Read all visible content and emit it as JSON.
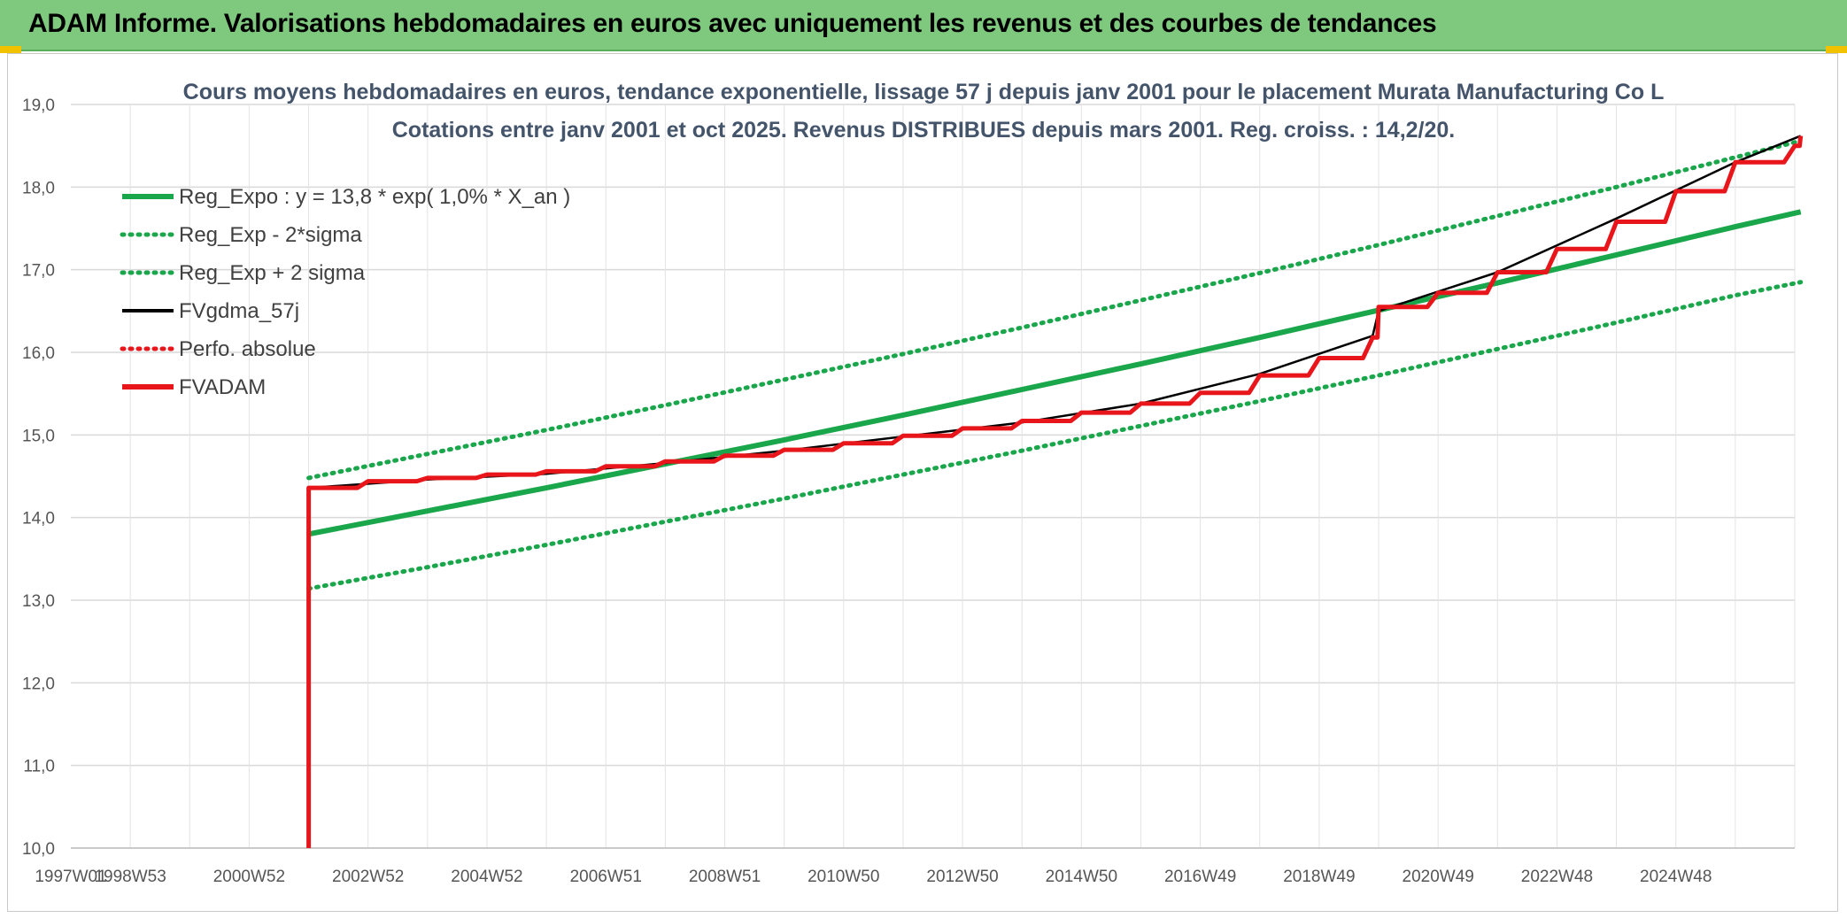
{
  "banner": {
    "title": "ADAM Informe. Valorisations hebdomadaires en euros avec uniquement les revenus et des courbes de tendances"
  },
  "colors": {
    "banner_bg": "#7fc97f",
    "reg_green": "#1aa64b",
    "fvadam_red": "#e8151b",
    "fvgdma_black": "#000000",
    "grid": "#d9d9d9",
    "title_text": "#44546a"
  },
  "chart_data": {
    "type": "line",
    "title": "Cours moyens hebdomadaires en euros, tendance exponentielle, lissage 57 j depuis janv 2001 pour le placement Murata Manufacturing Co L",
    "subtitle": "Cotations entre janv 2001 et oct 2025. Revenus DISTRIBUES depuis mars 2001. Reg. croiss. : 14,2/20.",
    "xlabel": "",
    "ylabel": "",
    "ylim": [
      10,
      19
    ],
    "xlim": [
      1997.0,
      2026.0
    ],
    "grid": true,
    "legend_position": "top-left",
    "y_ticks": [
      "10,0",
      "11,0",
      "12,0",
      "13,0",
      "14,0",
      "15,0",
      "16,0",
      "17,0",
      "18,0",
      "19,0"
    ],
    "x_ticks": [
      "1997W01",
      "1998W53",
      "2000W52",
      "2002W52",
      "2004W52",
      "2006W51",
      "2008W51",
      "2010W50",
      "2012W50",
      "2014W50",
      "2016W49",
      "2018W49",
      "2020W49",
      "2022W48",
      "2024W48"
    ],
    "series": [
      {
        "name": "Reg_Expo : y = 13,8 * exp( 1,0% *  X_an )",
        "style": "solid",
        "color": "#1aa64b",
        "x": [
          2001.0,
          2003.0,
          2005.0,
          2007.0,
          2009.0,
          2011.0,
          2013.0,
          2015.0,
          2017.0,
          2019.0,
          2021.0,
          2023.0,
          2025.0,
          2026.1
        ],
        "y": [
          13.8,
          14.08,
          14.36,
          14.65,
          14.94,
          15.24,
          15.55,
          15.86,
          16.18,
          16.51,
          16.84,
          17.18,
          17.52,
          17.7
        ]
      },
      {
        "name": "Reg_Exp - 2*sigma",
        "style": "dotted",
        "color": "#1aa64b",
        "x": [
          2001.0,
          2003.0,
          2005.0,
          2007.0,
          2009.0,
          2011.0,
          2013.0,
          2015.0,
          2017.0,
          2019.0,
          2021.0,
          2023.0,
          2025.0,
          2026.1
        ],
        "y": [
          13.14,
          13.4,
          13.67,
          13.95,
          14.23,
          14.52,
          14.81,
          15.11,
          15.41,
          15.72,
          16.04,
          16.36,
          16.69,
          16.85
        ]
      },
      {
        "name": "Reg_Exp + 2 sigma",
        "style": "dotted",
        "color": "#1aa64b",
        "x": [
          2001.0,
          2003.0,
          2005.0,
          2007.0,
          2009.0,
          2011.0,
          2013.0,
          2015.0,
          2017.0,
          2019.0,
          2021.0,
          2023.0,
          2025.0,
          2026.1
        ],
        "y": [
          14.48,
          14.77,
          15.06,
          15.36,
          15.67,
          15.98,
          16.3,
          16.63,
          16.96,
          17.3,
          17.65,
          18.0,
          18.36,
          18.56
        ]
      },
      {
        "name": "FVgdma_57j",
        "style": "solid",
        "color": "#000000",
        "x": [
          2001.0,
          2003.0,
          2005.0,
          2007.0,
          2009.0,
          2011.0,
          2013.0,
          2015.0,
          2017.0,
          2018.9,
          2019.0,
          2021.0,
          2023.0,
          2025.0,
          2026.1
        ],
        "y": [
          14.36,
          14.46,
          14.53,
          14.66,
          14.81,
          14.98,
          15.15,
          15.38,
          15.74,
          16.2,
          16.5,
          16.97,
          17.62,
          18.3,
          18.62
        ]
      },
      {
        "name": "Perfo. absolue",
        "style": "dotted",
        "color": "#e8151b",
        "x": [],
        "y": []
      },
      {
        "name": "FVADAM",
        "style": "solid",
        "color": "#e8151b",
        "x": [
          2001.0,
          2001.0,
          2001.0,
          2002.0,
          2003.0,
          2004.0,
          2005.0,
          2006.0,
          2007.0,
          2008.0,
          2009.0,
          2010.0,
          2011.0,
          2012.0,
          2013.0,
          2014.0,
          2015.0,
          2016.0,
          2017.0,
          2018.0,
          2018.9,
          2019.0,
          2020.0,
          2021.0,
          2022.0,
          2023.0,
          2024.0,
          2025.0,
          2026.0,
          2026.1
        ],
        "y": [
          10.0,
          14.36,
          14.36,
          14.44,
          14.48,
          14.52,
          14.56,
          14.62,
          14.68,
          14.75,
          14.82,
          14.9,
          14.99,
          15.08,
          15.17,
          15.27,
          15.38,
          15.51,
          15.72,
          15.93,
          16.18,
          16.55,
          16.72,
          16.97,
          17.25,
          17.58,
          17.95,
          18.3,
          18.5,
          18.62
        ]
      }
    ]
  }
}
